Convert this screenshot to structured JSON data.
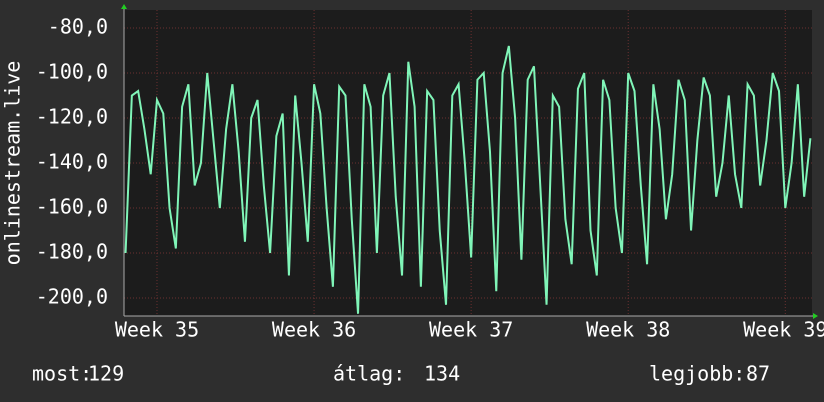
{
  "chart_data": {
    "type": "line",
    "y_label": "onlinestream.live",
    "xlim": [
      34.79,
      39.17
    ],
    "xticks": [
      {
        "value": 35,
        "label": "Week 35"
      },
      {
        "value": 36,
        "label": "Week 36"
      },
      {
        "value": 37,
        "label": "Week 37"
      },
      {
        "value": 38,
        "label": "Week 38"
      },
      {
        "value": 39,
        "label": "Week 39"
      }
    ],
    "ylim": [
      -208,
      -72
    ],
    "yticks": [
      {
        "value": -200,
        "label": "-200,0"
      },
      {
        "value": -180,
        "label": "-180,0"
      },
      {
        "value": -160,
        "label": "-160,0"
      },
      {
        "value": -140,
        "label": "-140,0"
      },
      {
        "value": -120,
        "label": "-120,0"
      },
      {
        "value": -100,
        "label": "-100,0"
      },
      {
        "value": -80,
        "label": "-80,0"
      }
    ],
    "grid": true,
    "x": [
      34.8,
      34.84,
      34.88,
      34.92,
      34.96,
      35,
      35.04,
      35.08,
      35.12,
      35.16,
      35.2,
      35.24,
      35.28,
      35.32,
      35.36,
      35.4,
      35.44,
      35.48,
      35.52,
      35.56,
      35.6,
      35.64,
      35.68,
      35.72,
      35.76,
      35.8,
      35.84,
      35.88,
      35.92,
      35.96,
      36,
      36.04,
      36.08,
      36.12,
      36.16,
      36.2,
      36.24,
      36.28,
      36.32,
      36.36,
      36.4,
      36.44,
      36.48,
      36.52,
      36.56,
      36.6,
      36.64,
      36.68,
      36.72,
      36.76,
      36.8,
      36.84,
      36.88,
      36.92,
      36.96,
      37,
      37.04,
      37.08,
      37.12,
      37.16,
      37.2,
      37.24,
      37.28,
      37.32,
      37.36,
      37.4,
      37.44,
      37.48,
      37.52,
      37.56,
      37.6,
      37.64,
      37.68,
      37.72,
      37.76,
      37.8,
      37.84,
      37.88,
      37.92,
      37.96,
      38,
      38.04,
      38.08,
      38.12,
      38.16,
      38.2,
      38.24,
      38.28,
      38.32,
      38.36,
      38.4,
      38.44,
      38.48,
      38.52,
      38.56,
      38.6,
      38.64,
      38.68,
      38.72,
      38.76,
      38.8,
      38.84,
      38.88,
      38.92,
      38.96,
      39,
      39.04,
      39.08,
      39.12,
      39.16
    ],
    "series": [
      {
        "color": "#80f5b8",
        "values": [
          -180,
          -110,
          -108,
          -125,
          -145,
          -112,
          -118,
          -160,
          -178,
          -115,
          -105,
          -150,
          -140,
          -100,
          -130,
          -160,
          -125,
          -105,
          -135,
          -175,
          -120,
          -112,
          -150,
          -180,
          -128,
          -118,
          -190,
          -110,
          -140,
          -175,
          -105,
          -118,
          -160,
          -195,
          -106,
          -110,
          -165,
          -207,
          -105,
          -115,
          -180,
          -110,
          -100,
          -155,
          -190,
          -95,
          -115,
          -195,
          -108,
          -112,
          -170,
          -203,
          -110,
          -105,
          -140,
          -182,
          -103,
          -100,
          -135,
          -197,
          -100,
          -88,
          -120,
          -183,
          -103,
          -97,
          -150,
          -203,
          -110,
          -115,
          -165,
          -185,
          -107,
          -100,
          -170,
          -190,
          -103,
          -112,
          -160,
          -180,
          -100,
          -108,
          -150,
          -185,
          -105,
          -125,
          -165,
          -145,
          -103,
          -112,
          -170,
          -130,
          -102,
          -110,
          -155,
          -140,
          -110,
          -145,
          -160,
          -105,
          -110,
          -150,
          -130,
          -100,
          -108,
          -160,
          -140,
          -105,
          -155,
          -129
        ]
      }
    ],
    "stats": [
      {
        "label": "most:",
        "value": 129
      },
      {
        "label": "átlag:",
        "value": 134
      },
      {
        "label": "legjobb:",
        "value": 87
      }
    ]
  }
}
